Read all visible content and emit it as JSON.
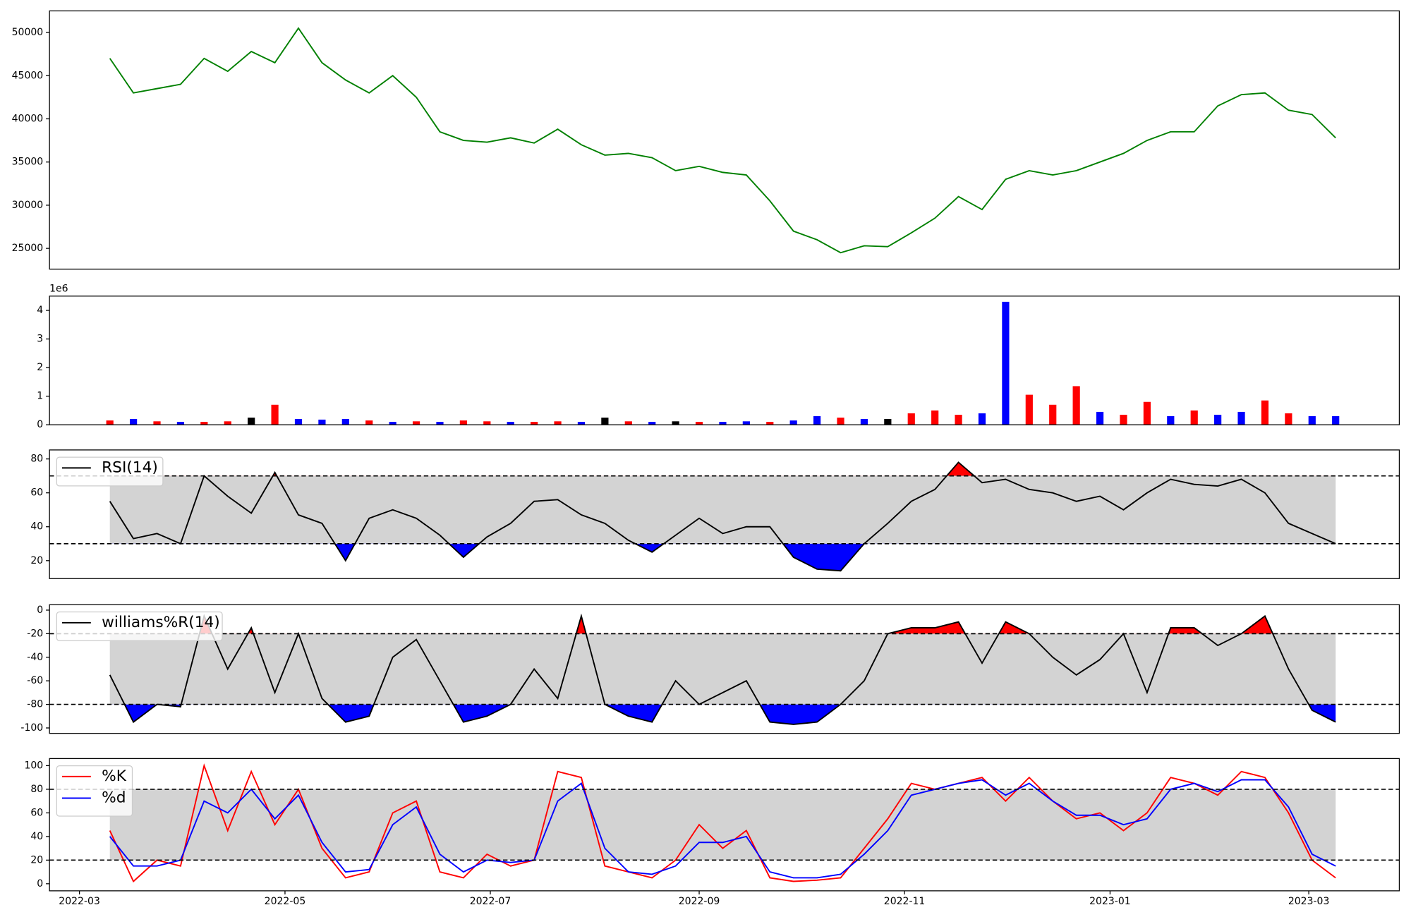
{
  "chart_data": [
    {
      "type": "line",
      "categories": [
        null,
        null,
        null,
        null,
        null,
        null,
        null,
        null,
        null,
        null,
        null,
        null,
        null,
        null,
        null,
        null,
        null,
        null,
        null,
        null,
        null,
        null,
        null,
        null,
        null,
        null,
        null,
        null,
        null,
        null,
        null,
        null,
        null,
        null,
        null,
        null,
        null,
        null,
        null,
        null,
        null,
        null,
        null,
        null,
        null,
        null,
        null,
        null,
        null,
        null,
        null,
        null,
        null
      ],
      "xlim": [
        -2.56,
        54.7
      ],
      "ylim": [
        22600,
        52500
      ],
      "yticks": [
        25000,
        30000,
        35000,
        40000,
        45000,
        50000
      ],
      "series": [
        {
          "color": "green",
          "values": [
            47000,
            43000,
            43500,
            44000,
            47000,
            45500,
            47800,
            46500,
            50500,
            46500,
            44500,
            43000,
            45000,
            42500,
            38500,
            37500,
            37300,
            37800,
            37200,
            38800,
            37000,
            35800,
            36000,
            35500,
            34000,
            34500,
            33800,
            33500,
            30500,
            27000,
            26000,
            24500,
            25300,
            25200,
            26800,
            28500,
            31000,
            29500,
            33000,
            34000,
            33500,
            34000,
            35000,
            36000,
            37500,
            38500,
            38500,
            41500,
            42800,
            43000,
            41000,
            40500,
            37800
          ]
        }
      ]
    },
    {
      "type": "bar",
      "categories": [
        null,
        null,
        null,
        null,
        null,
        null,
        null,
        null,
        null,
        null,
        null,
        null,
        null,
        null,
        null,
        null,
        null,
        null,
        null,
        null,
        null,
        null,
        null,
        null,
        null,
        null,
        null,
        null,
        null,
        null,
        null,
        null,
        null,
        null,
        null,
        null,
        null,
        null,
        null,
        null,
        null,
        null,
        null,
        null,
        null,
        null,
        null,
        null,
        null,
        null,
        null,
        null,
        null
      ],
      "xlim": [
        -2.56,
        54.7
      ],
      "ylim": [
        0,
        4.5
      ],
      "yticks": [
        0,
        1,
        2,
        3,
        4
      ],
      "offset_text": "1e6",
      "values": [
        0.15,
        0.2,
        0.12,
        0.1,
        0.1,
        0.12,
        0.25,
        0.7,
        0.2,
        0.18,
        0.2,
        0.15,
        0.1,
        0.12,
        0.1,
        0.15,
        0.12,
        0.1,
        0.1,
        0.12,
        0.1,
        0.25,
        0.12,
        0.1,
        0.12,
        0.1,
        0.1,
        0.12,
        0.1,
        0.15,
        0.3,
        0.25,
        0.2,
        0.2,
        0.4,
        0.5,
        0.35,
        0.4,
        4.3,
        1.05,
        0.7,
        1.35,
        0.45,
        0.35,
        0.8,
        0.3,
        0.5,
        0.35,
        0.45,
        0.85,
        0.4,
        0.3,
        0.3
      ],
      "colors": [
        "red",
        "blue",
        "red",
        "blue",
        "red",
        "red",
        "black",
        "red",
        "blue",
        "blue",
        "blue",
        "red",
        "blue",
        "red",
        "blue",
        "red",
        "red",
        "blue",
        "red",
        "red",
        "blue",
        "black",
        "red",
        "blue",
        "black",
        "red",
        "blue",
        "blue",
        "red",
        "blue",
        "blue",
        "red",
        "blue",
        "black",
        "red",
        "red",
        "red",
        "blue",
        "blue",
        "red",
        "red",
        "red",
        "blue",
        "red",
        "red",
        "blue",
        "red",
        "blue",
        "blue",
        "red",
        "red",
        "blue",
        "blue"
      ]
    },
    {
      "type": "line",
      "categories": [
        null,
        null,
        null,
        null,
        null,
        null,
        null,
        null,
        null,
        null,
        null,
        null,
        null,
        null,
        null,
        null,
        null,
        null,
        null,
        null,
        null,
        null,
        null,
        null,
        null,
        null,
        null,
        null,
        null,
        null,
        null,
        null,
        null,
        null,
        null,
        null,
        null,
        null,
        null,
        null,
        null,
        null,
        null,
        null,
        null,
        null,
        null,
        null,
        null,
        null,
        null,
        null,
        null
      ],
      "xlim": [
        -2.56,
        54.7
      ],
      "ylim": [
        9.4,
        85.3
      ],
      "yticks": [
        20,
        40,
        60,
        80
      ],
      "levels": [
        30,
        70
      ],
      "band_color": "lightgray",
      "upper_color": "red",
      "lower_color": "blue",
      "legend": "upper left",
      "series": [
        {
          "name": "RSI(14)",
          "color": "black",
          "values": [
            55,
            33,
            36,
            30,
            70,
            58,
            48,
            72,
            47,
            42,
            20,
            45,
            50,
            45,
            35,
            22,
            34,
            42,
            55,
            56,
            47,
            42,
            32,
            25,
            35,
            45,
            36,
            40,
            40,
            22,
            15,
            14,
            30,
            42,
            55,
            62,
            78,
            66,
            68,
            62,
            60,
            55,
            58,
            50,
            60,
            68,
            65,
            64,
            68,
            60,
            42,
            36,
            30
          ]
        }
      ]
    },
    {
      "type": "line",
      "categories": [
        null,
        null,
        null,
        null,
        null,
        null,
        null,
        null,
        null,
        null,
        null,
        null,
        null,
        null,
        null,
        null,
        null,
        null,
        null,
        null,
        null,
        null,
        null,
        null,
        null,
        null,
        null,
        null,
        null,
        null,
        null,
        null,
        null,
        null,
        null,
        null,
        null,
        null,
        null,
        null,
        null,
        null,
        null,
        null,
        null,
        null,
        null,
        null,
        null,
        null,
        null,
        null,
        null
      ],
      "xlim": [
        -2.56,
        54.7
      ],
      "ylim": [
        -104.6,
        4.6
      ],
      "yticks": [
        -100,
        -80,
        -60,
        -40,
        -20,
        0
      ],
      "levels": [
        -80,
        -20
      ],
      "band_color": "lightgray",
      "upper_color": "red",
      "lower_color": "blue",
      "legend": "upper left",
      "series": [
        {
          "name": "williams%R(14)",
          "color": "black",
          "values": [
            -55,
            -95,
            -80,
            -82,
            -5,
            -50,
            -15,
            -70,
            -20,
            -75,
            -95,
            -90,
            -40,
            -25,
            -60,
            -95,
            -90,
            -80,
            -50,
            -75,
            -5,
            -80,
            -90,
            -95,
            -60,
            -80,
            -70,
            -60,
            -95,
            -97,
            -95,
            -80,
            -60,
            -20,
            -15,
            -15,
            -10,
            -45,
            -10,
            -20,
            -40,
            -55,
            -42,
            -20,
            -70,
            -15,
            -15,
            -30,
            -20,
            -5,
            -50,
            -85,
            -95
          ]
        }
      ]
    },
    {
      "type": "line",
      "categories": [
        null,
        null,
        null,
        null,
        null,
        null,
        null,
        null,
        null,
        null,
        null,
        null,
        null,
        null,
        null,
        null,
        null,
        null,
        null,
        null,
        null,
        null,
        null,
        null,
        null,
        null,
        null,
        null,
        null,
        null,
        null,
        null,
        null,
        null,
        null,
        null,
        null,
        null,
        null,
        null,
        null,
        null,
        null,
        null,
        null,
        null,
        null,
        null,
        null,
        null,
        null,
        null,
        null
      ],
      "xlim": [
        -2.56,
        54.7
      ],
      "ylim": [
        -6,
        106
      ],
      "yticks": [
        0,
        20,
        40,
        60,
        80,
        100
      ],
      "levels": [
        20,
        80
      ],
      "band_color": "lightgray",
      "legend": "upper left",
      "xticks": [
        {
          "value": -1.29,
          "label": "2022-03"
        },
        {
          "value": 7.43,
          "label": "2022-05"
        },
        {
          "value": 16.14,
          "label": "2022-07"
        },
        {
          "value": 25,
          "label": "2022-09"
        },
        {
          "value": 33.71,
          "label": "2022-11"
        },
        {
          "value": 42.43,
          "label": "2023-01"
        },
        {
          "value": 50.86,
          "label": "2023-03"
        }
      ],
      "series": [
        {
          "name": "%K",
          "color": "red",
          "values": [
            45,
            2,
            20,
            15,
            100,
            45,
            95,
            50,
            80,
            30,
            5,
            10,
            60,
            70,
            10,
            5,
            25,
            15,
            20,
            95,
            90,
            15,
            10,
            5,
            20,
            50,
            30,
            45,
            5,
            2,
            3,
            5,
            30,
            55,
            85,
            80,
            85,
            90,
            70,
            90,
            70,
            55,
            60,
            45,
            60,
            90,
            85,
            75,
            95,
            90,
            60,
            20,
            5
          ]
        },
        {
          "name": "%d",
          "color": "blue",
          "values": [
            40,
            15,
            15,
            20,
            70,
            60,
            80,
            55,
            75,
            35,
            10,
            12,
            50,
            65,
            25,
            10,
            20,
            18,
            20,
            70,
            85,
            30,
            10,
            8,
            15,
            35,
            35,
            40,
            10,
            5,
            5,
            8,
            25,
            45,
            75,
            80,
            85,
            88,
            75,
            85,
            70,
            58,
            58,
            50,
            55,
            80,
            85,
            78,
            88,
            88,
            65,
            25,
            15
          ]
        }
      ]
    }
  ]
}
